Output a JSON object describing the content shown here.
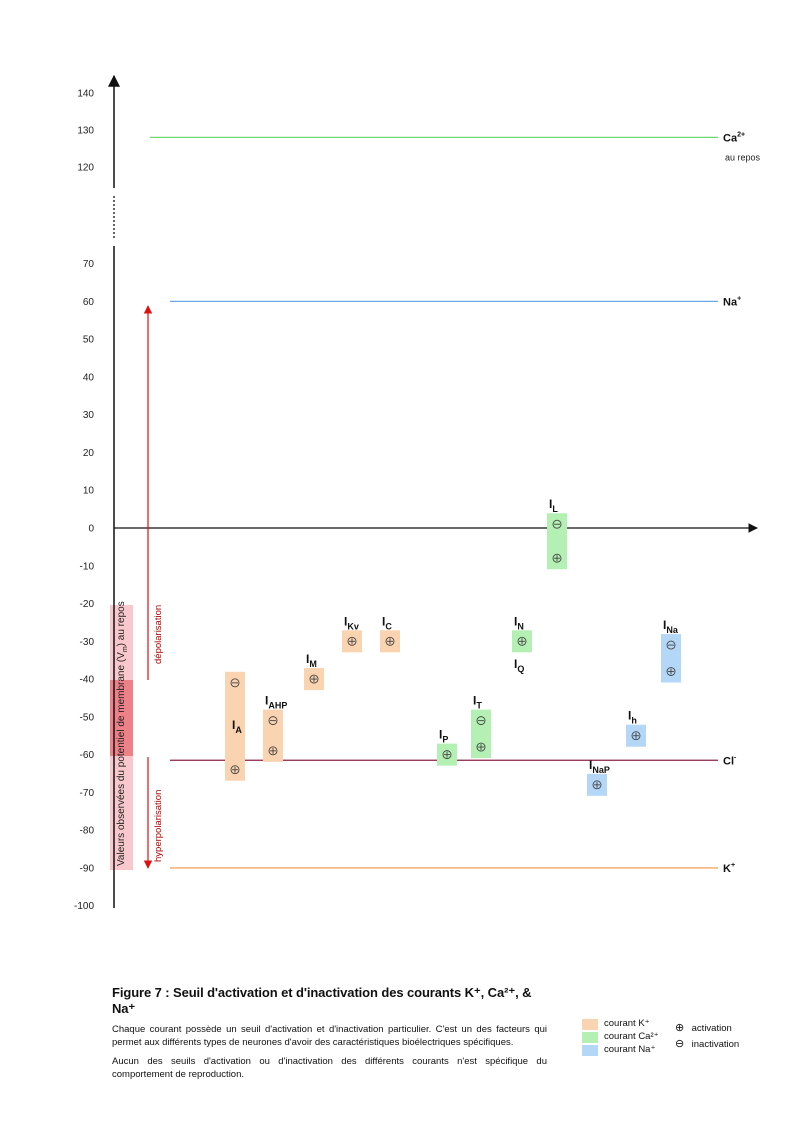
{
  "chart_data": {
    "type": "diagram",
    "y_ticks_upper": [
      "140",
      "130",
      "120"
    ],
    "y_ticks_lower": [
      "70",
      "60",
      "50",
      "40",
      "30",
      "20",
      "10",
      "0",
      "-10",
      "-20",
      "-30",
      "-40",
      "-50",
      "-60",
      "-70",
      "-80",
      "-90",
      "-100"
    ],
    "y_axis_label": "Valeurs observées du potentiel de membrane (V",
    "y_axis_label_sub": "m",
    "y_axis_label_end": ") au repos",
    "resting_range_mV": [
      -90,
      -20
    ],
    "resting_core_range_mV": [
      -60,
      -40
    ],
    "depolarisation_label": "dépolarisation",
    "hyperpolarisation_label": "hyperpolarisation",
    "equilibrium_lines": [
      {
        "ion": "Ca",
        "sup": "2+",
        "value": 128,
        "note": "au repos",
        "color": "#70d870"
      },
      {
        "ion": "Na",
        "sup": "+",
        "value": 60,
        "color": "#6aaae8"
      },
      {
        "ion": "Cl",
        "sup": "-",
        "value": -61.5,
        "color": "#8b2045"
      },
      {
        "ion": "K",
        "sup": "+",
        "value": -90,
        "color": "#f0a860"
      }
    ],
    "currents": [
      {
        "main": "I",
        "sub": "A",
        "type": "K",
        "activation": -64,
        "inactivation": -41
      },
      {
        "main": "I",
        "sub": "AHP",
        "type": "K",
        "activation": -59,
        "inactivation": -51
      },
      {
        "main": "I",
        "sub": "M",
        "type": "K",
        "activation": -40
      },
      {
        "main": "I",
        "sub": "Kv",
        "type": "K",
        "activation": -30
      },
      {
        "main": "I",
        "sub": "C",
        "type": "K",
        "activation": -30
      },
      {
        "main": "I",
        "sub": "L",
        "type": "Ca",
        "activation": -8,
        "inactivation": 1
      },
      {
        "main": "I",
        "sub": "N",
        "type": "Ca",
        "activation": -30
      },
      {
        "main": "I",
        "sub": "Q",
        "type": "Ca"
      },
      {
        "main": "I",
        "sub": "P",
        "type": "Ca",
        "activation": -60
      },
      {
        "main": "I",
        "sub": "T",
        "type": "Ca",
        "activation": -58,
        "inactivation": -51
      },
      {
        "main": "I",
        "sub": "NaP",
        "type": "Na",
        "activation": -68
      },
      {
        "main": "I",
        "sub": "h",
        "type": "Na",
        "activation": -55
      },
      {
        "main": "I",
        "sub": "Na",
        "type": "Na",
        "activation": -38,
        "inactivation": -31
      }
    ],
    "type_colors": {
      "K": "#fad3b0",
      "Ca": "#b4f0b4",
      "Na": "#b4d7f8"
    }
  },
  "caption": {
    "title": "Figure 7 : Seuil d'activation et d'inactivation des courants K⁺, Ca²⁺, & Na⁺",
    "p1": "Chaque courant possède un seuil d'activation et d'inactivation particulier. C'est un des facteurs qui permet aux différents types de neurones d'avoir des caractéristiques bioélectriques spécifiques.",
    "p2": "Aucun des seuils d'activation ou d'inactivation des différents courants n'est spécifique du comportement de reproduction."
  },
  "legend": {
    "items": [
      {
        "label": "courant K⁺",
        "color": "#fad3b0"
      },
      {
        "label": "courant Ca²⁺",
        "color": "#b4f0b4"
      },
      {
        "label": "courant Na⁺",
        "color": "#b4d7f8"
      }
    ],
    "activation_symbol": "⊕",
    "activation_label": "activation",
    "inactivation_symbol": "⊖",
    "inactivation_label": "inactivation"
  }
}
